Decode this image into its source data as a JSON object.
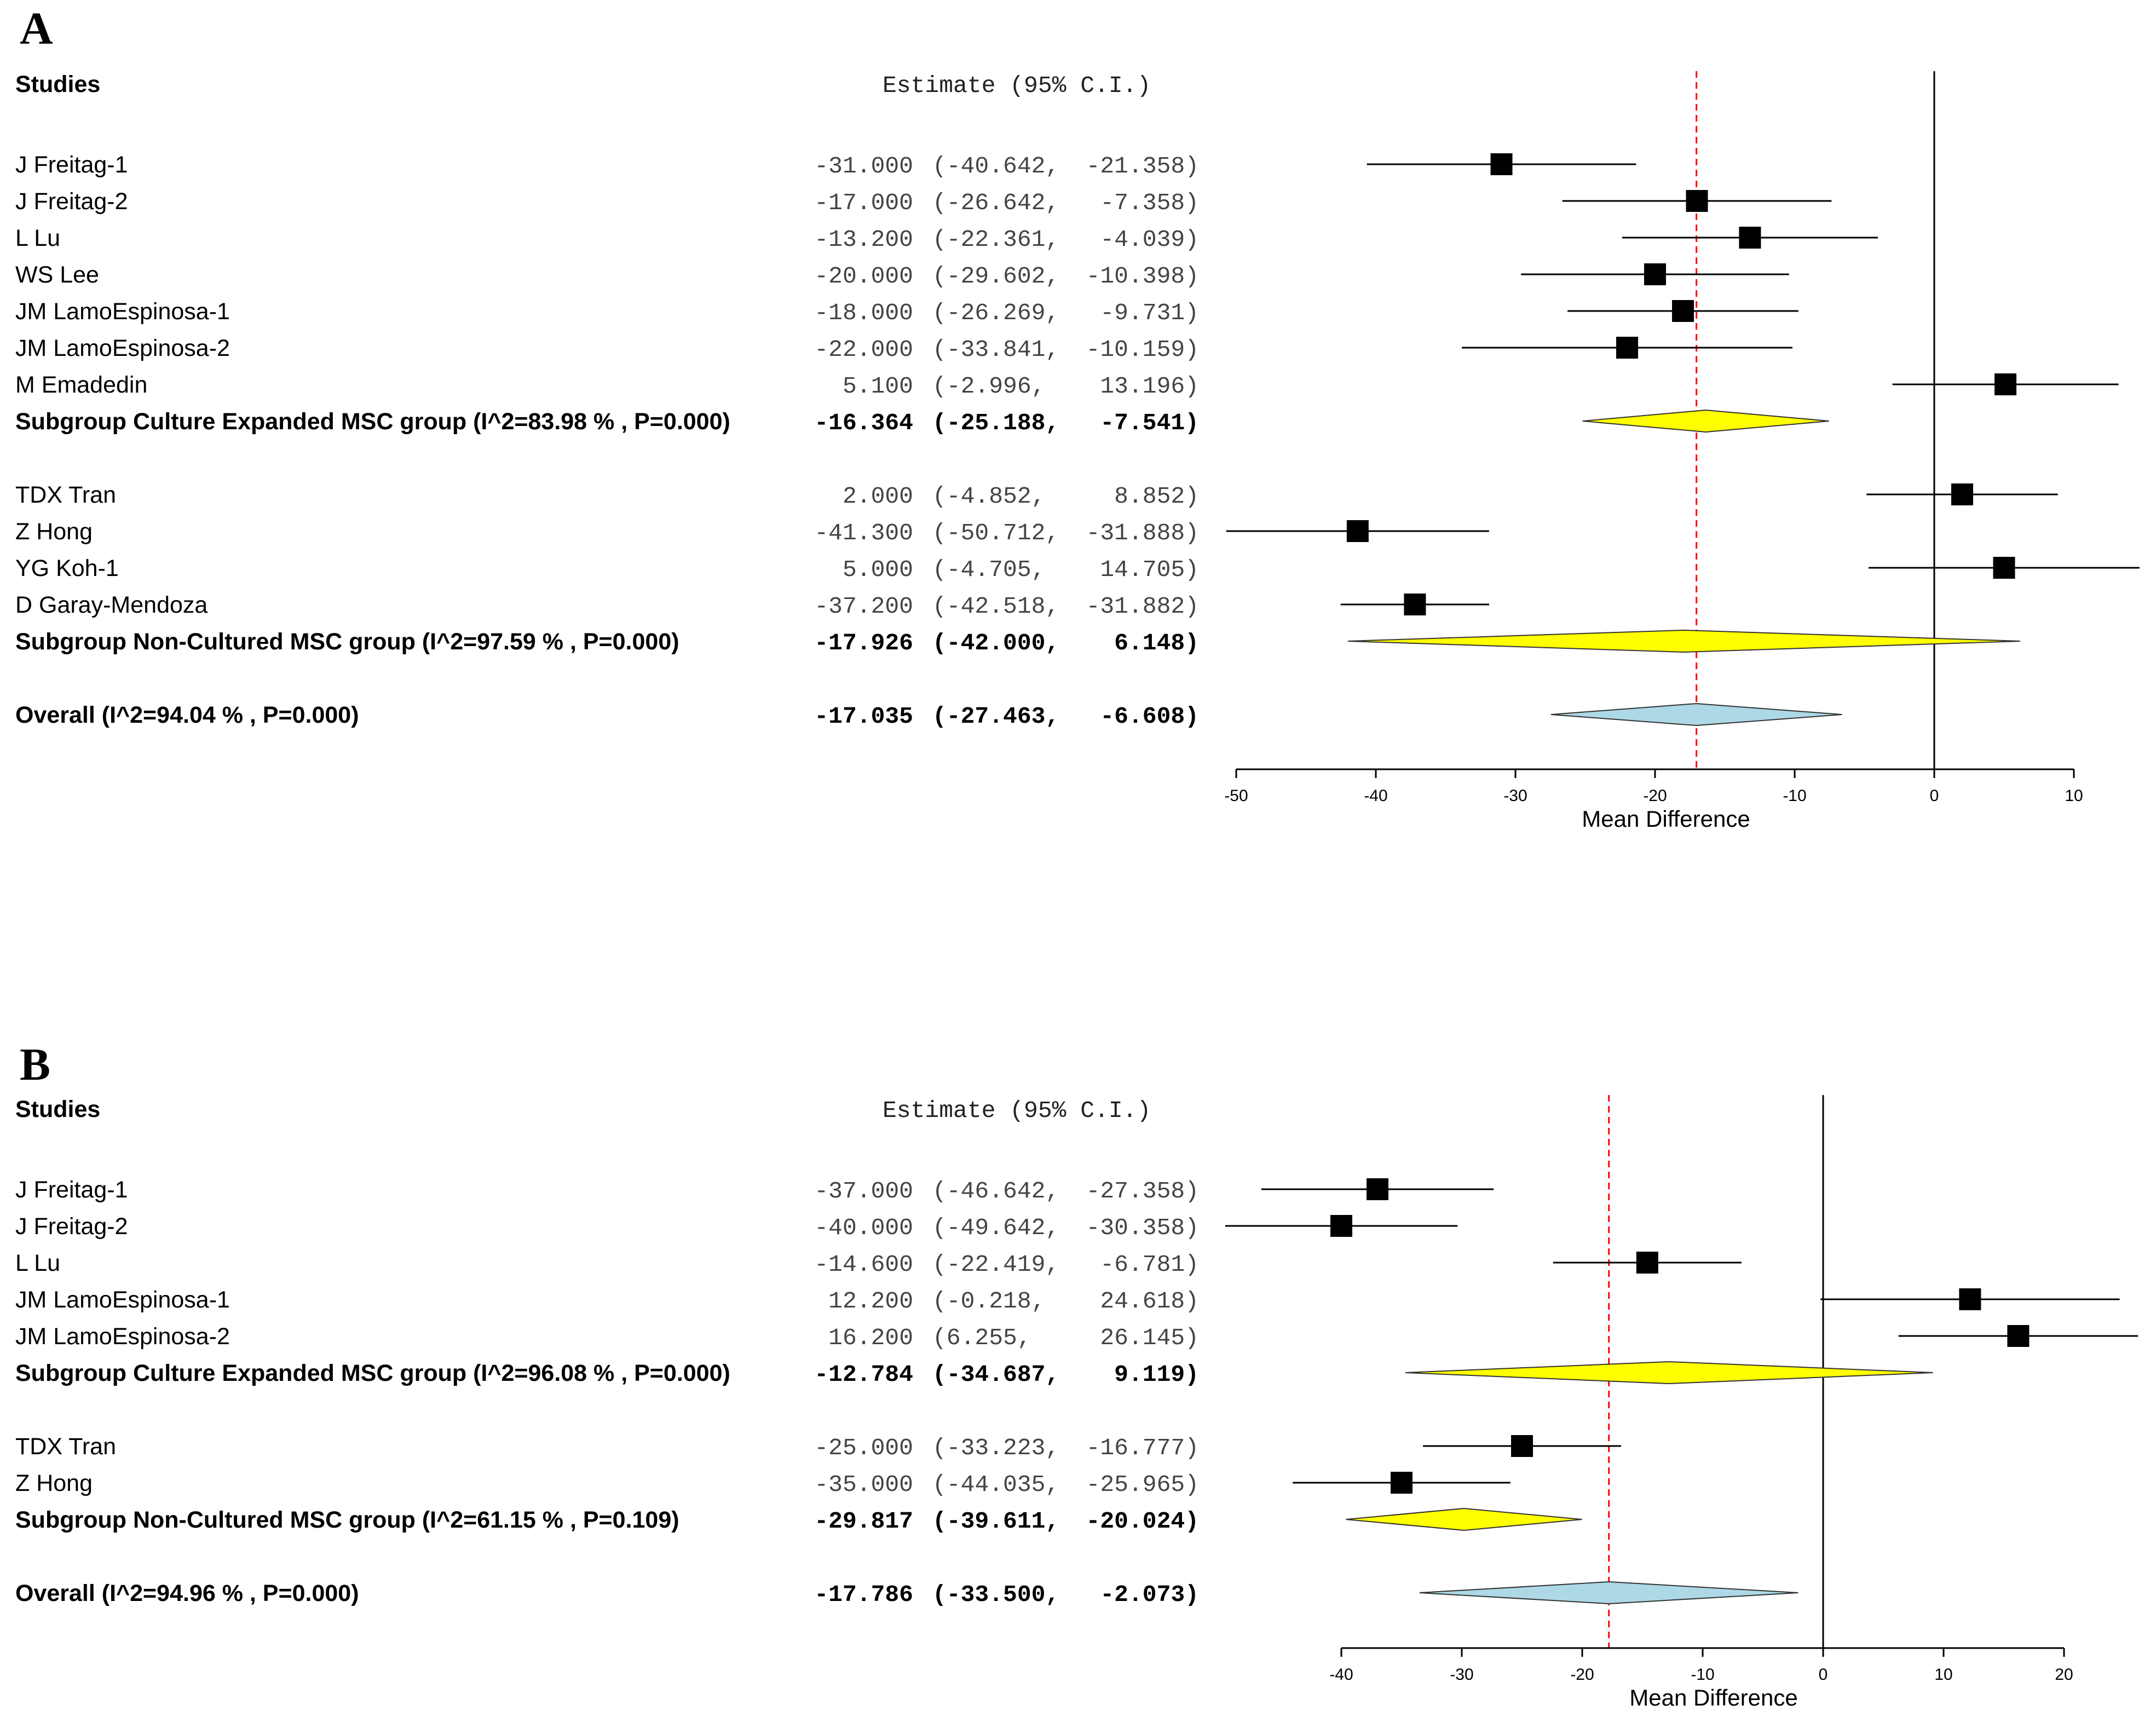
{
  "chart_data": [
    {
      "type": "forest",
      "panel_label": "A",
      "studies_header": "Studies",
      "estimate_header": "Estimate (95% C.I.)",
      "xlabel": "Mean Difference",
      "xlim": [
        -50,
        10
      ],
      "xticks": [
        "-50",
        "-40",
        "-30",
        "-20",
        "-10",
        "0",
        "10"
      ],
      "tick_values": [
        -50,
        -40,
        -30,
        -20,
        -10,
        0,
        10
      ],
      "reference_line": -17.035,
      "null_line": 0,
      "rows": [
        {
          "kind": "study",
          "label": "J Freitag-1",
          "est": -31.0,
          "lo": -40.642,
          "hi": -21.358,
          "text_est": "-31.000",
          "text_ci": "(-40.642, -21.358)"
        },
        {
          "kind": "study",
          "label": "J Freitag-2",
          "est": -17.0,
          "lo": -26.642,
          "hi": -7.358,
          "text_est": "-17.000",
          "text_ci": "(-26.642, -7.358)"
        },
        {
          "kind": "study",
          "label": "L Lu",
          "est": -13.2,
          "lo": -22.361,
          "hi": -4.039,
          "text_est": "-13.200",
          "text_ci": "(-22.361, -4.039)"
        },
        {
          "kind": "study",
          "label": "WS Lee",
          "est": -20.0,
          "lo": -29.602,
          "hi": -10.398,
          "text_est": "-20.000",
          "text_ci": "(-29.602, -10.398)"
        },
        {
          "kind": "study",
          "label": "JM LamoEspinosa-1",
          "est": -18.0,
          "lo": -26.269,
          "hi": -9.731,
          "text_est": "-18.000",
          "text_ci": "(-26.269, -9.731)"
        },
        {
          "kind": "study",
          "label": "JM LamoEspinosa-2",
          "est": -22.0,
          "lo": -33.841,
          "hi": -10.159,
          "text_est": "-22.000",
          "text_ci": "(-33.841, -10.159)"
        },
        {
          "kind": "study",
          "label": "M Emadedin",
          "est": 5.1,
          "lo": -2.996,
          "hi": 13.196,
          "text_est": "5.100",
          "text_ci": "(-2.996, 13.196)"
        },
        {
          "kind": "subgroup",
          "label": "Subgroup Culture Expanded MSC group (I^2=83.98 % , P=0.000)",
          "est": -16.364,
          "lo": -25.188,
          "hi": -7.541,
          "text_est": "-16.364",
          "text_ci": "(-25.188, -7.541)",
          "color": "#ffff00"
        },
        {
          "kind": "gap"
        },
        {
          "kind": "study",
          "label": "TDX Tran",
          "est": 2.0,
          "lo": -4.852,
          "hi": 8.852,
          "text_est": "2.000",
          "text_ci": "(-4.852, 8.852)"
        },
        {
          "kind": "study",
          "label": "Z Hong",
          "est": -41.3,
          "lo": -50.712,
          "hi": -31.888,
          "text_est": "-41.300",
          "text_ci": "(-50.712, -31.888)"
        },
        {
          "kind": "study",
          "label": "YG Koh-1",
          "est": 5.0,
          "lo": -4.705,
          "hi": 14.705,
          "text_est": "5.000",
          "text_ci": "(-4.705, 14.705)"
        },
        {
          "kind": "study",
          "label": "D Garay-Mendoza",
          "est": -37.2,
          "lo": -42.518,
          "hi": -31.882,
          "text_est": "-37.200",
          "text_ci": "(-42.518, -31.882)"
        },
        {
          "kind": "subgroup",
          "label": "Subgroup Non-Cultured MSC group (I^2=97.59 % , P=0.000)",
          "est": -17.926,
          "lo": -42.0,
          "hi": 6.148,
          "text_est": "-17.926",
          "text_ci": "(-42.000, 6.148)",
          "color": "#ffff00"
        },
        {
          "kind": "gap"
        },
        {
          "kind": "overall",
          "label": "Overall (I^2=94.04 % , P=0.000)",
          "est": -17.035,
          "lo": -27.463,
          "hi": -6.608,
          "text_est": "-17.035",
          "text_ci": "(-27.463, -6.608)",
          "color": "#add8e6"
        }
      ]
    },
    {
      "type": "forest",
      "panel_label": "B",
      "studies_header": "Studies",
      "estimate_header": "Estimate (95% C.I.)",
      "xlabel": "Mean Difference",
      "xlim": [
        -40,
        20
      ],
      "xticks": [
        "-40",
        "-30",
        "-20",
        "-10",
        "0",
        "10",
        "20"
      ],
      "tick_values": [
        -40,
        -30,
        -20,
        -10,
        0,
        10,
        20
      ],
      "reference_line": -17.786,
      "null_line": 0,
      "rows": [
        {
          "kind": "study",
          "label": "J Freitag-1",
          "est": -37.0,
          "lo": -46.642,
          "hi": -27.358,
          "text_est": "-37.000",
          "text_ci": "(-46.642, -27.358)"
        },
        {
          "kind": "study",
          "label": "J Freitag-2",
          "est": -40.0,
          "lo": -49.642,
          "hi": -30.358,
          "text_est": "-40.000",
          "text_ci": "(-49.642, -30.358)"
        },
        {
          "kind": "study",
          "label": "L Lu",
          "est": -14.6,
          "lo": -22.419,
          "hi": -6.781,
          "text_est": "-14.600",
          "text_ci": "(-22.419, -6.781)"
        },
        {
          "kind": "study",
          "label": "JM LamoEspinosa-1",
          "est": 12.2,
          "lo": -0.218,
          "hi": 24.618,
          "text_est": "12.200",
          "text_ci": "(-0.218, 24.618)"
        },
        {
          "kind": "study",
          "label": "JM LamoEspinosa-2",
          "est": 16.2,
          "lo": 6.255,
          "hi": 26.145,
          "text_est": "16.200",
          "text_ci": "(6.255, 26.145)"
        },
        {
          "kind": "subgroup",
          "label": "Subgroup Culture Expanded MSC group (I^2=96.08 % , P=0.000)",
          "est": -12.784,
          "lo": -34.687,
          "hi": 9.119,
          "text_est": "-12.784",
          "text_ci": "(-34.687, 9.119)",
          "color": "#ffff00"
        },
        {
          "kind": "gap"
        },
        {
          "kind": "study",
          "label": "TDX Tran",
          "est": -25.0,
          "lo": -33.223,
          "hi": -16.777,
          "text_est": "-25.000",
          "text_ci": "(-33.223, -16.777)"
        },
        {
          "kind": "study",
          "label": "Z Hong",
          "est": -35.0,
          "lo": -44.035,
          "hi": -25.965,
          "text_est": "-35.000",
          "text_ci": "(-44.035, -25.965)"
        },
        {
          "kind": "subgroup",
          "label": "Subgroup Non-Cultured MSC group (I^2=61.15 % , P=0.109)",
          "est": -29.817,
          "lo": -39.611,
          "hi": -20.024,
          "text_est": "-29.817",
          "text_ci": "(-39.611, -20.024)",
          "color": "#ffff00"
        },
        {
          "kind": "gap"
        },
        {
          "kind": "overall",
          "label": "Overall (I^2=94.96 % , P=0.000)",
          "est": -17.786,
          "lo": -33.5,
          "hi": -2.073,
          "text_est": "-17.786",
          "text_ci": "(-33.500, -2.073)",
          "color": "#add8e6"
        }
      ]
    }
  ]
}
